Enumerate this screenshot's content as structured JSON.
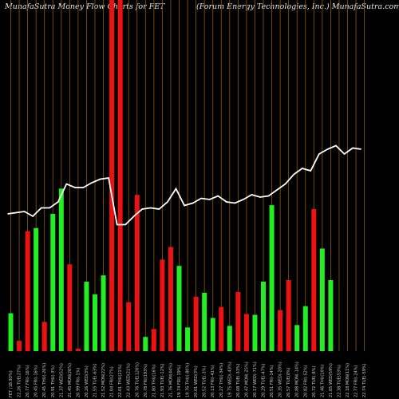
{
  "header": {
    "title_left": "MunafaSutra  Money Flow  Charts for FET",
    "title_right": "(Forum Energy Technologies, Inc.) MunafaSutra.com"
  },
  "chart_data": {
    "type": "bar",
    "title": "MunafaSutra  Money Flow  Charts for FET",
    "subtitle": "(Forum Energy Technologies, Inc.) MunafaSutra.com",
    "xlabel": "",
    "ylabel": "",
    "grid": true,
    "colors": {
      "up": "#22ee22",
      "down": "#ee1111",
      "line": "#ffffff",
      "grid": "#8a5a10",
      "background": "#000000"
    },
    "categories": [
      "03 Fri Feb 2025",
      "31 Fri Jan 2025",
      "30 Thu Jan 2025",
      "29 Wed Jan 2025",
      "28 Tue Jan 2025",
      "27 Mon Jan 2025",
      "24 Fri Jan 2025",
      "23 Thu Jan 2025",
      "22 Wed Jan 2025",
      "21 Tue Jan 2025",
      "17 Fri Jan 2025",
      "16 Thu Jan 2025",
      "15 Wed Jan 2025",
      "14 Tue Jan 2025",
      "13 Mon Jan 2025",
      "10 Fri Jan 2025",
      "08 Wed Jan 2025",
      "07 Tue Jan 2025",
      "06 Mon Jan 2025",
      "03 Fri Jan 2025",
      "02 Thu Jan 2025",
      "31 Tue Dec 2024",
      "30 Mon Dec 2024",
      "27 Fri Dec 2024",
      "26 Thu Dec 2024",
      "24 Tue Dec 2024",
      "23 Mon Dec 2024",
      "20 Fri Dec 2024",
      "19 Thu Dec 2024",
      "18 Wed Dec 2024",
      "17 Tue Dec 2024",
      "16 Mon Dec 2024",
      "13 Fri Dec 2024",
      "12 Thu Dec 2024",
      "11 Wed Dec 2024",
      "10 Tue Dec 2024",
      "09 Mon Dec 2024",
      "06 Fri Dec 2024",
      "05 Thu Dec 2024",
      "04 Wed Dec 2024",
      "03 Tue Dec 2024",
      "02 Mon Dec 2024",
      "29 Fri Nov 2024",
      "27 Wed Nov 2024",
      "26 Tue Nov 2024",
      "25 Mon Nov 2024"
    ],
    "tick_labels": [
      "FET (18.93%)",
      "22.26 TUE(27%)",
      "20.77 FRI(-16%)",
      "20.45 FRI(-16%)",
      "20.45 THU(-26%)",
      "20.91 THU(-3%)",
      "21.37 WED(52%)",
      "21.45 MON(26%)",
      "20.99 FRI(-1%)",
      "20.26 WED(3%)",
      "21.55 TUE(-63%)",
      "21.52 MON(22%)",
      "21.04 FRI(27%)",
      "22.01 THU(21%)",
      "22.43 WED(21%)",
      "20.76 TUE(126%)",
      "20.78 FRI(193%)",
      "21.80 THU(16%)",
      "21.93 TUE(-12%)",
      "21.76 MON(44%)",
      "19.74 FRI(-19%)",
      "19.76 THU(-80%)",
      "20.01 WED(3%)",
      "20.52 TUE(-3%)",
      "20.13 FRI(-41%)",
      "20.27 THU(-34%)",
      "19.75 WED(-43%)",
      "20.08 TUE(-33%)",
      "20.47 MON(-25%)",
      "20.17 WED(-71%)",
      "20.29 TUE(-47%)",
      "20.51 FRI(-14%)",
      "20.35 WED(-20%)",
      "20.57 TUE(0%)",
      "20.88 MON(-14%)",
      "20.82 FRI(-52%)",
      "20.72 TUE(-8%)",
      "21.46 THU(10%)",
      "21.65 WED(59%)",
      "22.38 TUE(53%)",
      "22.18 MON(11%)",
      "22.77 FRI(-24%)",
      "22.74 TUE(-59%)",
      "22.94 TUE(-61%)",
      "22.84 TUE(-1%)",
      "23.02 THU(0%)"
    ],
    "bar_directions": [
      "up",
      "down",
      "down",
      "up",
      "down",
      "up",
      "up",
      "down",
      "down",
      "up",
      "up",
      "up",
      "down",
      "down",
      "down",
      "down",
      "up",
      "down",
      "down",
      "down",
      "up",
      "up",
      "down",
      "up",
      "up",
      "down",
      "up",
      "down",
      "down",
      "up",
      "up",
      "up",
      "down",
      "down",
      "up",
      "up",
      "down",
      "up",
      "up",
      "down",
      "up",
      "up",
      "down",
      "up",
      "up",
      "down"
    ],
    "values": [
      48,
      13,
      152,
      156,
      37,
      174,
      206,
      110,
      3,
      88,
      72,
      96,
      445,
      445,
      62,
      198,
      18,
      28,
      116,
      132,
      108,
      30,
      69,
      74,
      42,
      56,
      32,
      75,
      47,
      46,
      88,
      185,
      52,
      90,
      33,
      57,
      180,
      130,
      90,
      0,
      0,
      0,
      0,
      0,
      0,
      0
    ],
    "ylim": [
      0,
      445
    ],
    "series": [
      {
        "values": [
          88,
          89,
          90,
          86,
          93,
          93,
          98,
          113,
          110,
          110,
          114,
          117,
          118,
          79,
          79,
          86,
          92,
          93,
          92,
          98,
          109,
          95,
          97,
          101,
          100,
          103,
          98,
          97,
          100,
          104,
          102,
          103,
          108,
          113,
          121,
          126,
          124,
          138,
          142,
          145,
          138,
          143,
          142,
          0,
          0,
          0
        ]
      }
    ]
  }
}
